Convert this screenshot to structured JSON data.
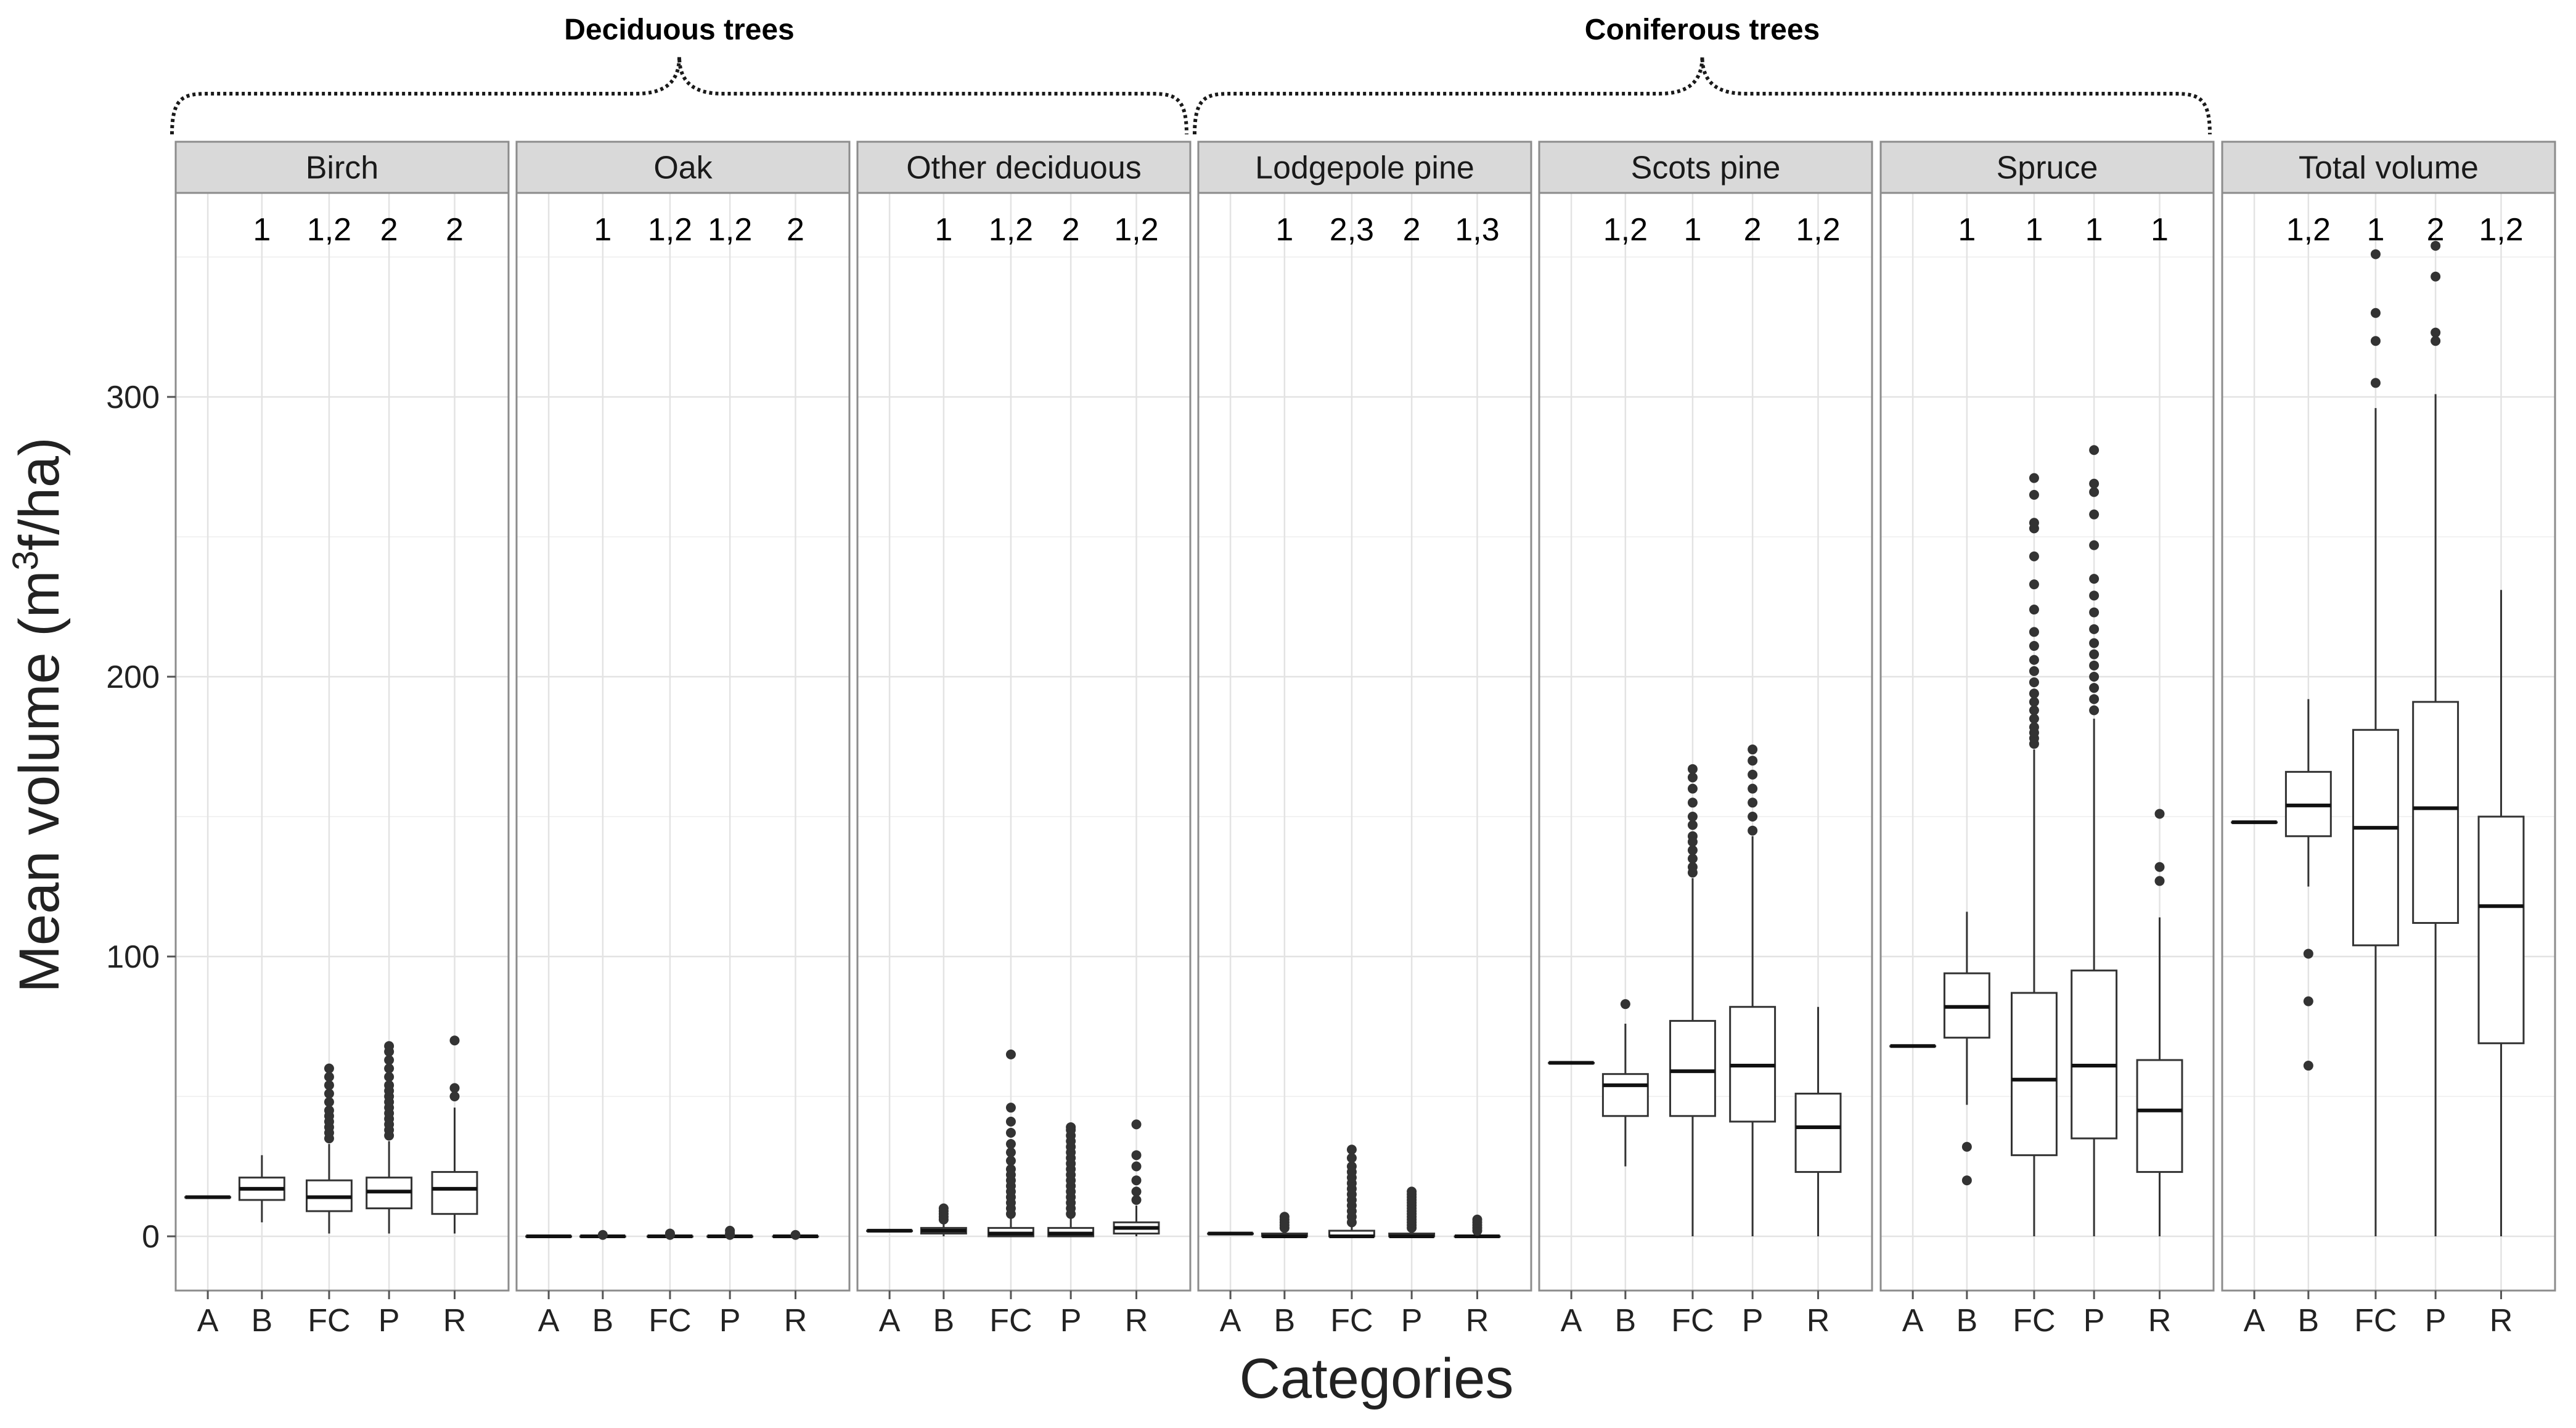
{
  "chart_data": {
    "type": "boxplot",
    "title": "",
    "xlabel": "Categories",
    "ylabel_prefix": "Mean volume (m",
    "ylabel_sup": "3",
    "ylabel_suffix": "f/ha)",
    "ylim": [
      -18,
      372
    ],
    "yticks": [
      0,
      100,
      200,
      300
    ],
    "categories": [
      "A",
      "B",
      "FC",
      "P",
      "R"
    ],
    "groups": [
      {
        "label": "Deciduous trees",
        "panels": [
          0,
          1,
          2
        ]
      },
      {
        "label": "Coniferous trees",
        "panels": [
          3,
          4,
          5
        ]
      }
    ],
    "panels": [
      {
        "name": "Birch",
        "significance": [
          "",
          "1",
          "1,2",
          "2",
          "2"
        ],
        "boxes": [
          {
            "min": 14,
            "q1": 14,
            "median": 14,
            "q3": 14,
            "max": 14,
            "outliers": []
          },
          {
            "min": 5,
            "q1": 13,
            "median": 17,
            "q3": 21,
            "max": 29,
            "outliers": []
          },
          {
            "min": 1,
            "q1": 9,
            "median": 14,
            "q3": 20,
            "max": 33,
            "outliers": [
              35,
              37,
              39,
              41,
              43,
              45,
              48,
              51,
              54,
              57,
              60
            ]
          },
          {
            "min": 1,
            "q1": 10,
            "median": 16,
            "q3": 21,
            "max": 34,
            "outliers": [
              36,
              38,
              40,
              42,
              44,
              46,
              48,
              50,
              52,
              54,
              57,
              60,
              63,
              66,
              68
            ]
          },
          {
            "min": 1,
            "q1": 8,
            "median": 17,
            "q3": 23,
            "max": 46,
            "outliers": [
              50,
              53,
              70
            ]
          }
        ]
      },
      {
        "name": "Oak",
        "significance": [
          "",
          "1",
          "1,2",
          "1,2",
          "2"
        ],
        "boxes": [
          {
            "min": 0,
            "q1": 0,
            "median": 0,
            "q3": 0,
            "max": 0,
            "outliers": []
          },
          {
            "min": 0,
            "q1": 0,
            "median": 0,
            "q3": 0,
            "max": 0,
            "outliers": [
              0.5
            ]
          },
          {
            "min": 0,
            "q1": 0,
            "median": 0,
            "q3": 0,
            "max": 0,
            "outliers": [
              0.5,
              1
            ]
          },
          {
            "min": 0,
            "q1": 0,
            "median": 0,
            "q3": 0,
            "max": 0,
            "outliers": [
              0.5,
              1,
              2
            ]
          },
          {
            "min": 0,
            "q1": 0,
            "median": 0,
            "q3": 0,
            "max": 0,
            "outliers": [
              0.5
            ]
          }
        ]
      },
      {
        "name": "Other deciduous",
        "significance": [
          "",
          "1",
          "1,2",
          "2",
          "1,2"
        ],
        "boxes": [
          {
            "min": 2,
            "q1": 2,
            "median": 2,
            "q3": 2,
            "max": 2,
            "outliers": []
          },
          {
            "min": 0,
            "q1": 1,
            "median": 2,
            "q3": 3,
            "max": 5,
            "outliers": [
              6,
              7,
              8,
              9,
              10
            ]
          },
          {
            "min": 0,
            "q1": 0,
            "median": 1,
            "q3": 3,
            "max": 7,
            "outliers": [
              8,
              10,
              12,
              14,
              16,
              18,
              20,
              22,
              24,
              27,
              30,
              33,
              37,
              41,
              46,
              65
            ]
          },
          {
            "min": 0,
            "q1": 0,
            "median": 1,
            "q3": 3,
            "max": 7,
            "outliers": [
              8,
              10,
              12,
              14,
              16,
              18,
              20,
              22,
              24,
              26,
              28,
              30,
              32,
              34,
              36,
              38,
              39
            ]
          },
          {
            "min": 0,
            "q1": 1,
            "median": 3,
            "q3": 5,
            "max": 11,
            "outliers": [
              13,
              16,
              20,
              25,
              29,
              40
            ]
          }
        ]
      },
      {
        "name": "Lodgepole pine",
        "significance": [
          "",
          "1",
          "2,3",
          "2",
          "1,3"
        ],
        "boxes": [
          {
            "min": 1,
            "q1": 1,
            "median": 1,
            "q3": 1,
            "max": 1,
            "outliers": []
          },
          {
            "min": 0,
            "q1": 0,
            "median": 0,
            "q3": 1,
            "max": 2,
            "outliers": [
              3,
              4,
              5,
              6,
              7
            ]
          },
          {
            "min": 0,
            "q1": 0,
            "median": 0,
            "q3": 2,
            "max": 4,
            "outliers": [
              5,
              7,
              9,
              11,
              13,
              15,
              17,
              19,
              21,
              23,
              25,
              28,
              31
            ]
          },
          {
            "min": 0,
            "q1": 0,
            "median": 0,
            "q3": 1,
            "max": 2,
            "outliers": [
              3,
              4,
              5,
              6,
              7,
              8,
              9,
              10,
              11,
              12,
              13,
              14,
              15,
              16
            ]
          },
          {
            "min": 0,
            "q1": 0,
            "median": 0,
            "q3": 0,
            "max": 1,
            "outliers": [
              2,
              3,
              4,
              5,
              6
            ]
          }
        ]
      },
      {
        "name": "Scots pine",
        "significance": [
          "",
          "1,2",
          "1",
          "2",
          "1,2"
        ],
        "boxes": [
          {
            "min": 62,
            "q1": 62,
            "median": 62,
            "q3": 62,
            "max": 62,
            "outliers": []
          },
          {
            "min": 25,
            "q1": 43,
            "median": 54,
            "q3": 58,
            "max": 76,
            "outliers": [
              83
            ]
          },
          {
            "min": 0,
            "q1": 43,
            "median": 59,
            "q3": 77,
            "max": 128,
            "outliers": [
              130,
              132,
              135,
              138,
              141,
              143,
              147,
              150,
              155,
              160,
              164,
              167
            ]
          },
          {
            "min": 0,
            "q1": 41,
            "median": 61,
            "q3": 82,
            "max": 143,
            "outliers": [
              145,
              150,
              155,
              160,
              165,
              170,
              174
            ]
          },
          {
            "min": 0,
            "q1": 23,
            "median": 39,
            "q3": 51,
            "max": 82,
            "outliers": []
          }
        ]
      },
      {
        "name": "Spruce",
        "significance": [
          "",
          "1",
          "1",
          "1",
          "1"
        ],
        "boxes": [
          {
            "min": 68,
            "q1": 68,
            "median": 68,
            "q3": 68,
            "max": 68,
            "outliers": []
          },
          {
            "min": 47,
            "q1": 71,
            "median": 82,
            "q3": 94,
            "max": 116,
            "outliers": [
              20,
              32
            ]
          },
          {
            "min": 0,
            "q1": 29,
            "median": 56,
            "q3": 87,
            "max": 174,
            "outliers": [
              176,
              178,
              180,
              182,
              185,
              188,
              191,
              194,
              198,
              202,
              206,
              211,
              216,
              224,
              233,
              243,
              253,
              255,
              265,
              271
            ]
          },
          {
            "min": 0,
            "q1": 35,
            "median": 61,
            "q3": 95,
            "max": 185,
            "outliers": [
              188,
              192,
              196,
              200,
              204,
              208,
              212,
              217,
              223,
              229,
              235,
              247,
              258,
              266,
              269,
              281
            ]
          },
          {
            "min": 0,
            "q1": 23,
            "median": 45,
            "q3": 63,
            "max": 114,
            "outliers": [
              127,
              132,
              151
            ]
          }
        ]
      },
      {
        "name": "Total volume",
        "significance": [
          "",
          "1,2",
          "1",
          "2",
          "1,2"
        ],
        "boxes": [
          {
            "min": 148,
            "q1": 148,
            "median": 148,
            "q3": 148,
            "max": 148,
            "outliers": []
          },
          {
            "min": 125,
            "q1": 143,
            "median": 154,
            "q3": 166,
            "max": 192,
            "outliers": [
              61,
              84,
              101
            ]
          },
          {
            "min": 0,
            "q1": 104,
            "median": 146,
            "q3": 181,
            "max": 296,
            "outliers": [
              305,
              320,
              330,
              351
            ]
          },
          {
            "min": 0,
            "q1": 112,
            "median": 153,
            "q3": 191,
            "max": 301,
            "outliers": [
              320,
              323,
              343,
              354
            ]
          },
          {
            "min": 0,
            "q1": 69,
            "median": 118,
            "q3": 150,
            "max": 231,
            "outliers": []
          }
        ]
      }
    ]
  }
}
